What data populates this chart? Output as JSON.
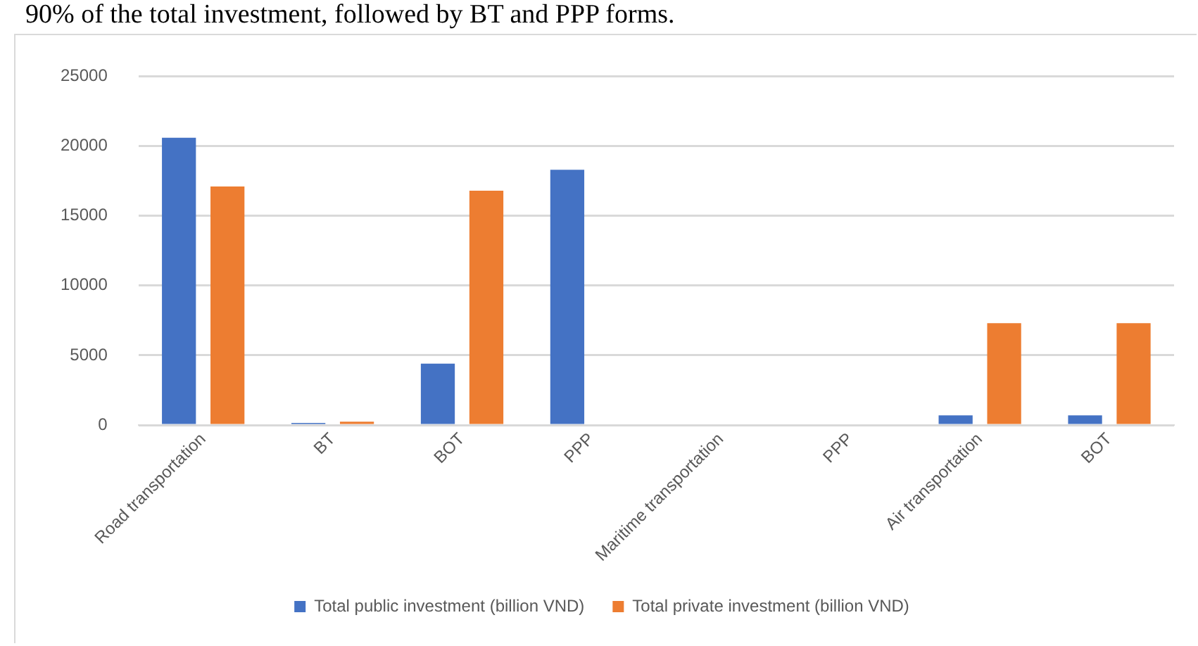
{
  "chart_data": {
    "type": "bar",
    "annotations": [
      "90% of the total investment, followed by BT and PPP forms."
    ],
    "categories": [
      "Road transportation",
      "BT",
      "BOT",
      "PPP",
      "Maritime transportation",
      "PPP",
      "Air transportation",
      "BOT"
    ],
    "series": [
      {
        "name": "Total public investment (billion VND)",
        "color": "#4472c4",
        "values": [
          20600,
          150,
          4400,
          18300,
          0,
          0,
          700,
          700
        ]
      },
      {
        "name": "Total private investment (billion VND)",
        "color": "#ed7d31",
        "values": [
          17100,
          250,
          16800,
          0,
          0,
          0,
          7300,
          7300
        ]
      }
    ],
    "ylim": [
      0,
      25000
    ],
    "yticks": [
      0,
      5000,
      10000,
      15000,
      20000,
      25000
    ],
    "grid": "y",
    "legend": "bottom"
  }
}
